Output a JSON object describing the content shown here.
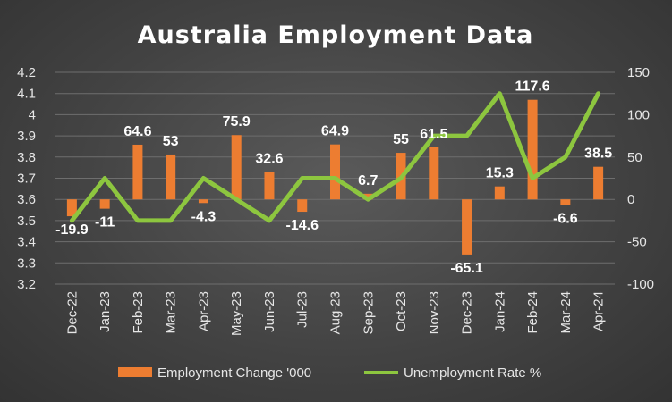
{
  "chart_data": {
    "type": "bar",
    "title": "Australia Employment Data",
    "categories": [
      "Dec-22",
      "Jan-23",
      "Feb-23",
      "Mar-23",
      "Apr-23",
      "May-23",
      "Jun-23",
      "Jul-23",
      "Aug-23",
      "Sep-23",
      "Oct-23",
      "Nov-23",
      "Dec-23",
      "Jan-24",
      "Feb-24",
      "Mar-24",
      "Apr-24"
    ],
    "series": [
      {
        "name": "Employment Change '000",
        "type": "bar",
        "axis": "right",
        "color": "#ed7d31",
        "values": [
          -19.9,
          -11,
          64.6,
          53,
          -4.3,
          75.9,
          32.6,
          -14.6,
          64.9,
          6.7,
          55,
          61.5,
          -65.1,
          15.3,
          117.6,
          -6.6,
          38.5
        ],
        "labels": [
          "-19.9",
          "-11",
          "64.6",
          "53",
          "-4.3",
          "75.9",
          "32.6",
          "-14.6",
          "64.9",
          "6.7",
          "55",
          "61.5",
          "-65.1",
          "15.3",
          "117.6",
          "-6.6",
          "38.5"
        ]
      },
      {
        "name": "Unemployment Rate %",
        "type": "line",
        "axis": "left",
        "color": "#8dc63f",
        "values": [
          3.5,
          3.7,
          3.5,
          3.5,
          3.7,
          3.6,
          3.5,
          3.7,
          3.7,
          3.6,
          3.7,
          3.9,
          3.9,
          4.1,
          3.7,
          3.8,
          4.1
        ]
      }
    ],
    "y_left": {
      "ylim": [
        3.2,
        4.2
      ],
      "ticks": [
        "3.2",
        "3.3",
        "3.4",
        "3.5",
        "3.6",
        "3.7",
        "3.8",
        "3.9",
        "4",
        "4.1",
        "4.2"
      ]
    },
    "y_right": {
      "ylim": [
        -100,
        150
      ],
      "ticks": [
        "-100",
        "-50",
        "0",
        "50",
        "100",
        "150"
      ]
    },
    "grid": true,
    "legend_position": "bottom"
  }
}
